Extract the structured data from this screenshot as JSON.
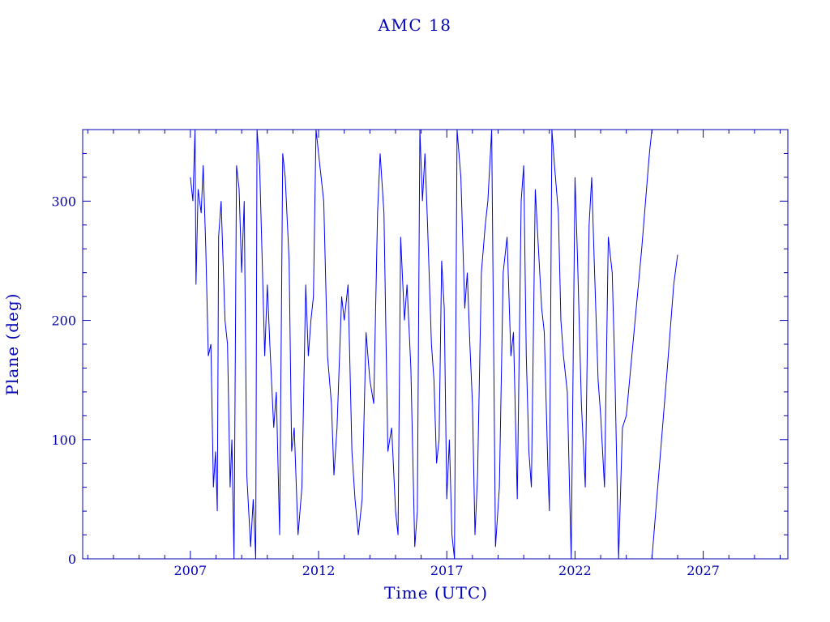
{
  "chart_data": {
    "type": "line",
    "title": "AMC 18",
    "xlabel": "Time (UTC)",
    "ylabel": "Plane (deg)",
    "xlim": [
      2002.8,
      2030.3
    ],
    "ylim": [
      0,
      360
    ],
    "x_ticks": [
      2007,
      2012,
      2017,
      2022,
      2027
    ],
    "y_ticks": [
      0,
      100,
      200,
      300
    ],
    "grid": false,
    "line_color": "#0000ff",
    "axis_color": "#0000b4",
    "series": [
      {
        "values": [
          [
            2007.0,
            320
          ],
          [
            2007.1,
            300
          ],
          [
            2007.18,
            360
          ],
          [
            2007.22,
            230
          ],
          [
            2007.3,
            310
          ],
          [
            2007.42,
            290
          ],
          [
            2007.5,
            330
          ],
          [
            2007.6,
            260
          ],
          [
            2007.7,
            170
          ],
          [
            2007.8,
            180
          ],
          [
            2007.9,
            60
          ],
          [
            2007.98,
            90
          ],
          [
            2008.05,
            40
          ],
          [
            2008.1,
            270
          ],
          [
            2008.2,
            300
          ],
          [
            2008.35,
            200
          ],
          [
            2008.45,
            180
          ],
          [
            2008.55,
            60
          ],
          [
            2008.62,
            100
          ],
          [
            2008.7,
            0
          ],
          [
            2008.8,
            330
          ],
          [
            2008.9,
            310
          ],
          [
            2009.0,
            240
          ],
          [
            2009.1,
            300
          ],
          [
            2009.2,
            70
          ],
          [
            2009.35,
            10
          ],
          [
            2009.45,
            50
          ],
          [
            2009.55,
            0
          ],
          [
            2009.6,
            360
          ],
          [
            2009.7,
            330
          ],
          [
            2009.8,
            250
          ],
          [
            2009.9,
            170
          ],
          [
            2010.0,
            230
          ],
          [
            2010.1,
            180
          ],
          [
            2010.25,
            110
          ],
          [
            2010.35,
            140
          ],
          [
            2010.48,
            20
          ],
          [
            2010.6,
            340
          ],
          [
            2010.7,
            320
          ],
          [
            2010.85,
            250
          ],
          [
            2010.95,
            90
          ],
          [
            2011.05,
            110
          ],
          [
            2011.2,
            20
          ],
          [
            2011.35,
            60
          ],
          [
            2011.5,
            230
          ],
          [
            2011.6,
            170
          ],
          [
            2011.7,
            200
          ],
          [
            2011.8,
            220
          ],
          [
            2011.9,
            360
          ],
          [
            2012.05,
            330
          ],
          [
            2012.2,
            300
          ],
          [
            2012.35,
            170
          ],
          [
            2012.5,
            130
          ],
          [
            2012.6,
            70
          ],
          [
            2012.72,
            110
          ],
          [
            2012.9,
            220
          ],
          [
            2013.0,
            200
          ],
          [
            2013.15,
            230
          ],
          [
            2013.3,
            90
          ],
          [
            2013.42,
            50
          ],
          [
            2013.55,
            20
          ],
          [
            2013.7,
            50
          ],
          [
            2013.85,
            190
          ],
          [
            2014.0,
            150
          ],
          [
            2014.15,
            130
          ],
          [
            2014.3,
            290
          ],
          [
            2014.4,
            340
          ],
          [
            2014.55,
            290
          ],
          [
            2014.7,
            90
          ],
          [
            2014.85,
            110
          ],
          [
            2015.0,
            40
          ],
          [
            2015.1,
            20
          ],
          [
            2015.2,
            270
          ],
          [
            2015.35,
            200
          ],
          [
            2015.45,
            230
          ],
          [
            2015.6,
            160
          ],
          [
            2015.75,
            10
          ],
          [
            2015.85,
            40
          ],
          [
            2015.95,
            360
          ],
          [
            2016.05,
            300
          ],
          [
            2016.15,
            340
          ],
          [
            2016.25,
            280
          ],
          [
            2016.4,
            180
          ],
          [
            2016.5,
            150
          ],
          [
            2016.6,
            80
          ],
          [
            2016.7,
            100
          ],
          [
            2016.8,
            250
          ],
          [
            2016.9,
            210
          ],
          [
            2017.0,
            50
          ],
          [
            2017.1,
            100
          ],
          [
            2017.2,
            20
          ],
          [
            2017.3,
            0
          ],
          [
            2017.4,
            360
          ],
          [
            2017.55,
            320
          ],
          [
            2017.7,
            210
          ],
          [
            2017.8,
            240
          ],
          [
            2017.9,
            180
          ],
          [
            2018.0,
            130
          ],
          [
            2018.1,
            20
          ],
          [
            2018.2,
            70
          ],
          [
            2018.35,
            240
          ],
          [
            2018.5,
            280
          ],
          [
            2018.6,
            300
          ],
          [
            2018.75,
            360
          ],
          [
            2018.9,
            10
          ],
          [
            2019.05,
            60
          ],
          [
            2019.2,
            240
          ],
          [
            2019.35,
            270
          ],
          [
            2019.5,
            170
          ],
          [
            2019.6,
            190
          ],
          [
            2019.75,
            50
          ],
          [
            2019.9,
            300
          ],
          [
            2020.0,
            330
          ],
          [
            2020.1,
            170
          ],
          [
            2020.2,
            90
          ],
          [
            2020.3,
            60
          ],
          [
            2020.45,
            310
          ],
          [
            2020.6,
            250
          ],
          [
            2020.7,
            210
          ],
          [
            2020.8,
            190
          ],
          [
            2020.95,
            70
          ],
          [
            2021.0,
            40
          ],
          [
            2021.1,
            360
          ],
          [
            2021.2,
            330
          ],
          [
            2021.35,
            290
          ],
          [
            2021.45,
            200
          ],
          [
            2021.55,
            170
          ],
          [
            2021.7,
            140
          ],
          [
            2021.85,
            0
          ],
          [
            2022.0,
            320
          ],
          [
            2022.1,
            250
          ],
          [
            2022.25,
            130
          ],
          [
            2022.4,
            60
          ],
          [
            2022.55,
            280
          ],
          [
            2022.65,
            320
          ],
          [
            2022.75,
            250
          ],
          [
            2022.9,
            150
          ],
          [
            2023.0,
            120
          ],
          [
            2023.15,
            60
          ],
          [
            2023.3,
            270
          ],
          [
            2023.45,
            240
          ],
          [
            2023.55,
            160
          ],
          [
            2023.7,
            0
          ],
          [
            2023.85,
            110
          ],
          [
            2024.0,
            120
          ],
          [
            2024.3,
            190
          ],
          [
            2024.6,
            260
          ],
          [
            2024.9,
            340
          ],
          [
            2025.0,
            360
          ]
        ]
      },
      {
        "values": [
          [
            2025.0,
            0
          ],
          [
            2025.3,
            80
          ],
          [
            2025.6,
            160
          ],
          [
            2025.85,
            230
          ],
          [
            2026.0,
            255
          ]
        ]
      }
    ]
  }
}
